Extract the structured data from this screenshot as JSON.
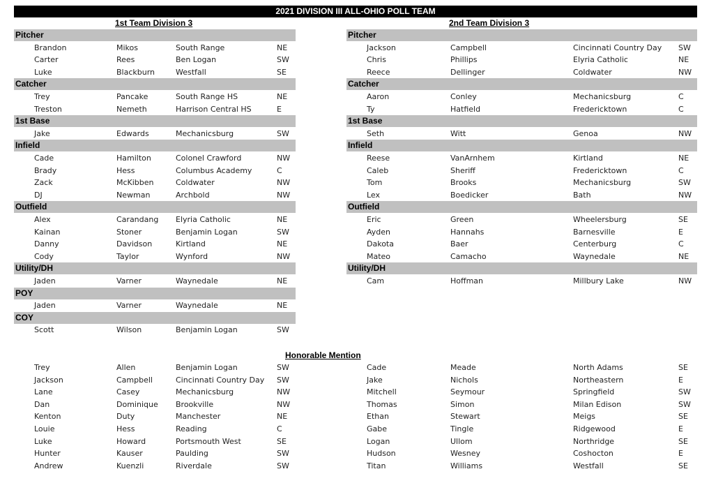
{
  "title": "2021 DIVISION III  ALL-OHIO POLL TEAM",
  "first_team": {
    "heading": "1st Team Division 3",
    "sections": [
      {
        "position": "Pitcher",
        "rows": [
          [
            "Brandon",
            "Mikos",
            "South Range",
            "NE"
          ],
          [
            "Carter",
            "Rees",
            "Ben Logan",
            "SW"
          ],
          [
            "Luke",
            "Blackburn",
            "Westfall",
            "SE"
          ]
        ]
      },
      {
        "position": "Catcher",
        "rows": [
          [
            "Trey",
            "Pancake",
            "South Range HS",
            "NE"
          ],
          [
            "Treston",
            "Nemeth",
            "Harrison Central HS",
            "E"
          ]
        ]
      },
      {
        "position": "1st Base",
        "rows": [
          [
            "Jake",
            "Edwards",
            "Mechanicsburg",
            "SW"
          ]
        ]
      },
      {
        "position": "Infield",
        "rows": [
          [
            "Cade",
            "Hamilton",
            "Colonel Crawford",
            "NW"
          ],
          [
            "Brady",
            "Hess",
            "Columbus Academy",
            "C"
          ],
          [
            "Zack",
            "McKibben",
            "Coldwater",
            "NW"
          ],
          [
            "DJ",
            "Newman",
            "Archbold",
            "NW"
          ]
        ]
      },
      {
        "position": "Outfield",
        "rows": [
          [
            "Alex",
            "Carandang",
            "Elyria Catholic",
            "NE"
          ],
          [
            "Kainan",
            "Stoner",
            "Benjamin Logan",
            "SW"
          ],
          [
            "Danny",
            "Davidson",
            "Kirtland",
            "NE"
          ],
          [
            "Cody",
            "Taylor",
            "Wynford",
            "NW"
          ]
        ]
      },
      {
        "position": "Utility/DH",
        "rows": [
          [
            "Jaden",
            "Varner",
            "Waynedale",
            "NE"
          ]
        ]
      },
      {
        "position": "POY",
        "rows": [
          [
            "Jaden",
            "Varner",
            "Waynedale",
            "NE"
          ]
        ]
      },
      {
        "position": "COY",
        "rows": [
          [
            "Scott",
            "Wilson",
            "Benjamin Logan",
            "SW"
          ]
        ]
      }
    ]
  },
  "second_team": {
    "heading": "2nd Team Division 3",
    "sections": [
      {
        "position": "Pitcher",
        "rows": [
          [
            "Jackson",
            "Campbell",
            "Cincinnati Country Day",
            "SW"
          ],
          [
            "Chris",
            "Phillips",
            "Elyria Catholic",
            "NE"
          ],
          [
            "Reece",
            "Dellinger",
            "Coldwater",
            "NW"
          ]
        ]
      },
      {
        "position": "Catcher",
        "rows": [
          [
            "Aaron",
            "Conley",
            "Mechanicsburg",
            "C"
          ],
          [
            "Ty",
            "Hatfield",
            "Fredericktown",
            "C"
          ]
        ]
      },
      {
        "position": "1st Base",
        "rows": [
          [
            "Seth",
            "Witt",
            "Genoa",
            "NW"
          ]
        ]
      },
      {
        "position": "Infield",
        "rows": [
          [
            "Reese",
            "VanArnhem",
            "Kirtland",
            "NE"
          ],
          [
            "Caleb",
            "Sheriff",
            "Fredericktown",
            "C"
          ],
          [
            "Tom",
            "Brooks",
            "Mechanicsburg",
            "SW"
          ],
          [
            "Lex",
            "Boedicker",
            "Bath",
            "NW"
          ]
        ]
      },
      {
        "position": "Outfield",
        "rows": [
          [
            "Eric",
            "Green",
            "Wheelersburg",
            "SE"
          ],
          [
            "Ayden",
            "Hannahs",
            "Barnesville",
            "E"
          ],
          [
            "Dakota",
            "Baer",
            "Centerburg",
            "C"
          ],
          [
            "Mateo",
            "Camacho",
            "Waynedale",
            "NE"
          ]
        ]
      },
      {
        "position": "Utility/DH",
        "rows": [
          [
            "Cam",
            "Hoffman",
            "Millbury Lake",
            "NW"
          ]
        ]
      }
    ]
  },
  "honorable_mention": {
    "heading": "Honorable Mention",
    "left": [
      [
        "Trey",
        "Allen",
        "Benjamin Logan",
        "SW"
      ],
      [
        "Jackson",
        "Campbell",
        "Cincinnati Country Day",
        "SW"
      ],
      [
        "Lane",
        "Casey",
        "Mechanicsburg",
        "NW"
      ],
      [
        "Dan",
        "Dominique",
        "Brookville",
        "NW"
      ],
      [
        "Kenton",
        "Duty",
        "Manchester",
        "NE"
      ],
      [
        "Louie",
        "Hess",
        "Reading",
        "C"
      ],
      [
        "Luke",
        "Howard",
        "Portsmouth West",
        "SE"
      ],
      [
        "Hunter",
        "Kauser",
        "Paulding",
        "SW"
      ],
      [
        "Andrew",
        "Kuenzli",
        "Riverdale",
        "SW"
      ]
    ],
    "right": [
      [
        "Cade",
        "Meade",
        "North Adams",
        "SE"
      ],
      [
        "Jake",
        "Nichols",
        "Northeastern",
        "E"
      ],
      [
        "Mitchell",
        "Seymour",
        "Springfield",
        "SW"
      ],
      [
        "Thomas",
        "Simon",
        "Milan Edison",
        "SW"
      ],
      [
        "Ethan",
        "Stewart",
        "Meigs",
        "SE"
      ],
      [
        "Gabe",
        "Tingle",
        "Ridgewood",
        "E"
      ],
      [
        "Logan",
        "Ullom",
        "Northridge",
        "SE"
      ],
      [
        "Hudson",
        "Wesney",
        "Coshocton",
        "E"
      ],
      [
        "Titan",
        "Williams",
        "Westfall",
        "SE"
      ]
    ]
  }
}
